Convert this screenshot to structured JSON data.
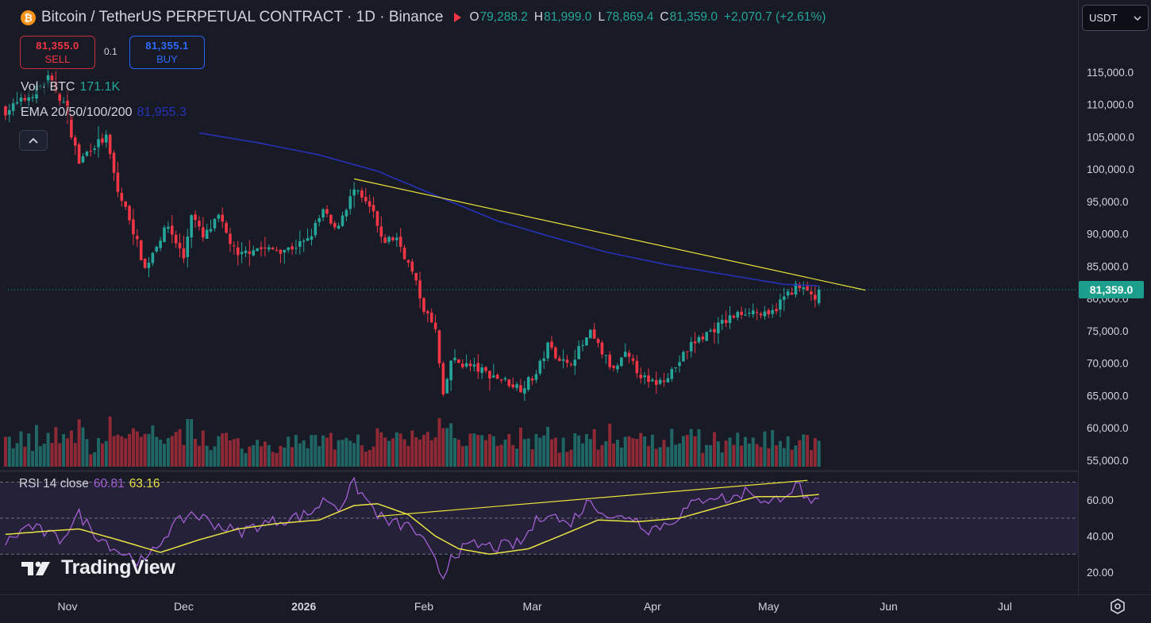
{
  "header": {
    "coin_letter": "₿",
    "symbol": "Bitcoin / TetherUS PERPETUAL CONTRACT · 1D · Binance",
    "o_label": "O",
    "o": "79,288.2",
    "h_label": "H",
    "h": "81,999.0",
    "l_label": "L",
    "l": "78,869.4",
    "c_label": "C",
    "c": "81,359.0",
    "change": "+2,070.7 (+2.61%)"
  },
  "trade": {
    "sell_price": "81,355.0",
    "sell_label": "SELL",
    "spread": "0.1",
    "buy_price": "81,355.1",
    "buy_label": "BUY"
  },
  "legend": {
    "vol_label": "Vol · BTC",
    "vol_value": "171.1K",
    "ema_label": "EMA 20/50/100/200",
    "ema_value": "81,955.3"
  },
  "rsi": {
    "label": "RSI 14 close",
    "value": "60.81",
    "ma_value": "63.16"
  },
  "currency": "USDT",
  "last_price_tag": "81,359.0",
  "logo_text": "TradingView",
  "colors": {
    "background": "#181a25",
    "up": "#26a69a",
    "down": "#f23645",
    "ema": "#2632b8",
    "trendline": "#e8e23a",
    "rsi": "#a35fd4",
    "rsi_ma": "#e7e244"
  },
  "chart_data": [
    {
      "type": "candlestick",
      "title": "Bitcoin / TetherUS PERPETUAL CONTRACT · 1D · Binance",
      "y_ticks": [
        "115,000.0",
        "110,000.0",
        "105,000.0",
        "100,000.0",
        "95,000.0",
        "90,000.0",
        "85,000.0",
        "80,000.0",
        "75,000.0",
        "70,000.0",
        "65,000.0",
        "60,000.0",
        "55,000.0"
      ],
      "x_ticks": [
        "Nov",
        "Dec",
        "2026",
        "Feb",
        "Mar",
        "Apr",
        "May",
        "Jun",
        "Jul"
      ],
      "ylim": [
        55000,
        117500
      ],
      "last_price": 81359.0,
      "anchors_close": [
        [
          "2025-10-16",
          109000
        ],
        [
          "2025-10-22",
          111200
        ],
        [
          "2025-10-27",
          114000
        ],
        [
          "2025-10-31",
          110200
        ],
        [
          "2025-11-04",
          101000
        ],
        [
          "2025-11-07",
          103400
        ],
        [
          "2025-11-11",
          104800
        ],
        [
          "2025-11-14",
          96500
        ],
        [
          "2025-11-17",
          92500
        ],
        [
          "2025-11-21",
          84600
        ],
        [
          "2025-11-24",
          88500
        ],
        [
          "2025-11-27",
          91200
        ],
        [
          "2025-12-01",
          86300
        ],
        [
          "2025-12-03",
          93300
        ],
        [
          "2025-12-06",
          89300
        ],
        [
          "2025-12-10",
          92500
        ],
        [
          "2025-12-15",
          86300
        ],
        [
          "2025-12-19",
          87900
        ],
        [
          "2025-12-23",
          87500
        ],
        [
          "2025-12-28",
          87700
        ],
        [
          "2026-01-02",
          88900
        ],
        [
          "2026-01-06",
          93500
        ],
        [
          "2026-01-09",
          90500
        ],
        [
          "2026-01-14",
          96700
        ],
        [
          "2026-01-19",
          93200
        ],
        [
          "2026-01-21",
          88900
        ],
        [
          "2026-01-25",
          89400
        ],
        [
          "2026-01-29",
          84000
        ],
        [
          "2026-02-01",
          78500
        ],
        [
          "2026-02-04",
          75000
        ],
        [
          "2026-02-06",
          64500
        ],
        [
          "2026-02-08",
          70500
        ],
        [
          "2026-02-14",
          69300
        ],
        [
          "2026-02-20",
          67800
        ],
        [
          "2026-02-26",
          66200
        ],
        [
          "2026-03-02",
          68300
        ],
        [
          "2026-03-05",
          72700
        ],
        [
          "2026-03-10",
          69600
        ],
        [
          "2026-03-16",
          74500
        ],
        [
          "2026-03-22",
          68800
        ],
        [
          "2026-03-25",
          71200
        ],
        [
          "2026-03-31",
          66800
        ],
        [
          "2026-04-03",
          67200
        ],
        [
          "2026-04-07",
          69500
        ],
        [
          "2026-04-11",
          72900
        ],
        [
          "2026-04-16",
          75000
        ],
        [
          "2026-04-21",
          77000
        ],
        [
          "2026-04-26",
          78300
        ],
        [
          "2026-05-01",
          77100
        ],
        [
          "2026-05-05",
          80200
        ],
        [
          "2026-05-08",
          81800
        ],
        [
          "2026-05-12",
          80800
        ],
        [
          "2026-05-13",
          79288
        ],
        [
          "2026-05-14",
          81359
        ]
      ],
      "ema_200": [
        [
          "2025-12-05",
          105600
        ],
        [
          "2025-12-20",
          104100
        ],
        [
          "2026-01-05",
          102200
        ],
        [
          "2026-01-20",
          99700
        ],
        [
          "2026-02-05",
          95700
        ],
        [
          "2026-02-20",
          92000
        ],
        [
          "2026-03-05",
          89700
        ],
        [
          "2026-03-20",
          87200
        ],
        [
          "2026-04-05",
          85200
        ],
        [
          "2026-04-20",
          83700
        ],
        [
          "2026-05-05",
          82200
        ],
        [
          "2026-05-14",
          81955
        ]
      ],
      "trendline": [
        [
          "2026-01-14",
          98500
        ],
        [
          "2026-05-26",
          81300
        ]
      ]
    },
    {
      "type": "line",
      "title": "RSI 14 close",
      "y_ticks": [
        "60.00",
        "40.00",
        "20.00"
      ],
      "bands": [
        70,
        50,
        30
      ],
      "rsi_anchors": [
        [
          "2025-10-16",
          36
        ],
        [
          "2025-10-22",
          46
        ],
        [
          "2025-10-30",
          38
        ],
        [
          "2025-11-04",
          52
        ],
        [
          "2025-11-08",
          42
        ],
        [
          "2025-11-14",
          32
        ],
        [
          "2025-11-21",
          25
        ],
        [
          "2025-11-27",
          43
        ],
        [
          "2025-12-03",
          53
        ],
        [
          "2025-12-09",
          47
        ],
        [
          "2025-12-15",
          42
        ],
        [
          "2025-12-20",
          46
        ],
        [
          "2025-12-26",
          49
        ],
        [
          "2026-01-02",
          52
        ],
        [
          "2026-01-07",
          61
        ],
        [
          "2026-01-10",
          56
        ],
        [
          "2026-01-14",
          69
        ],
        [
          "2026-01-19",
          55
        ],
        [
          "2026-01-22",
          48
        ],
        [
          "2026-01-29",
          45
        ],
        [
          "2026-02-02",
          33
        ],
        [
          "2026-02-06",
          17
        ],
        [
          "2026-02-08",
          30
        ],
        [
          "2026-02-14",
          35
        ],
        [
          "2026-02-20",
          34
        ],
        [
          "2026-02-26",
          36
        ],
        [
          "2026-03-02",
          48
        ],
        [
          "2026-03-05",
          54
        ],
        [
          "2026-03-10",
          46
        ],
        [
          "2026-03-16",
          60
        ],
        [
          "2026-03-22",
          49
        ],
        [
          "2026-03-26",
          52
        ],
        [
          "2026-03-31",
          44
        ],
        [
          "2026-04-05",
          47
        ],
        [
          "2026-04-11",
          57
        ],
        [
          "2026-04-16",
          63
        ],
        [
          "2026-04-21",
          60
        ],
        [
          "2026-04-26",
          66
        ],
        [
          "2026-05-01",
          57
        ],
        [
          "2026-05-05",
          64
        ],
        [
          "2026-05-09",
          68
        ],
        [
          "2026-05-12",
          55
        ],
        [
          "2026-05-14",
          60.81
        ]
      ],
      "rsi_ma_anchors": [
        [
          "2025-10-16",
          41
        ],
        [
          "2025-10-28",
          43
        ],
        [
          "2025-11-04",
          44
        ],
        [
          "2025-11-14",
          38
        ],
        [
          "2025-11-25",
          31
        ],
        [
          "2025-12-05",
          38
        ],
        [
          "2025-12-15",
          44
        ],
        [
          "2025-12-25",
          47
        ],
        [
          "2026-01-05",
          49
        ],
        [
          "2026-01-14",
          57
        ],
        [
          "2026-01-20",
          58
        ],
        [
          "2026-01-28",
          52
        ],
        [
          "2026-02-04",
          40
        ],
        [
          "2026-02-10",
          33
        ],
        [
          "2026-02-18",
          30
        ],
        [
          "2026-02-28",
          33
        ],
        [
          "2026-03-08",
          40
        ],
        [
          "2026-03-18",
          49
        ],
        [
          "2026-03-28",
          48
        ],
        [
          "2026-04-08",
          50
        ],
        [
          "2026-04-18",
          56
        ],
        [
          "2026-04-28",
          62
        ],
        [
          "2026-05-08",
          62
        ],
        [
          "2026-05-14",
          63.16
        ]
      ],
      "divergence_line": [
        [
          "2026-01-20",
          51
        ],
        [
          "2026-05-11",
          71
        ]
      ]
    }
  ]
}
